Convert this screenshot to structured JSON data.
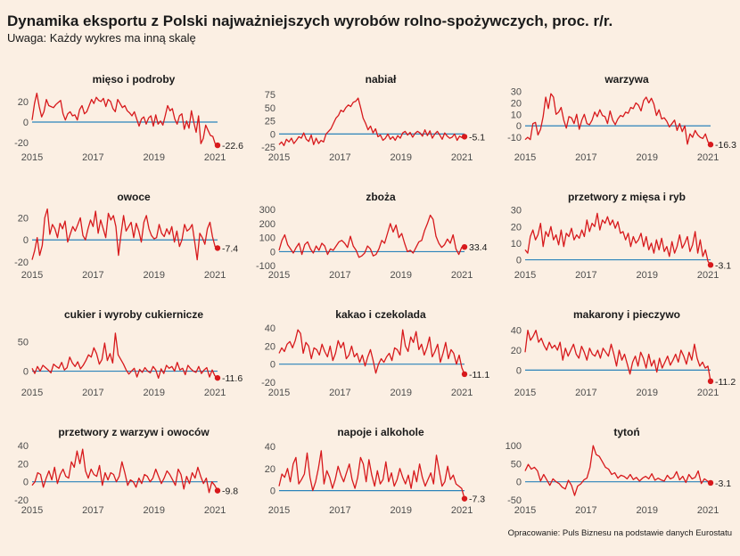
{
  "title": "Dynamika eksportu z Polski najważniejszych wyrobów rolno-spożywczych, proc. r/r.",
  "subtitle": "Uwaga: Każdy wykres ma inną skalę",
  "source": "Opracowanie: Puls Biznesu na podstawie danych Eurostatu",
  "colors": {
    "background": "#fbefe3",
    "series": "#d7191c",
    "zero_line": "#2b83ba",
    "text": "#1a1a1a",
    "axis_text": "#4d4d4d"
  },
  "chart_data": [
    {
      "type": "line",
      "title": "mięso i podroby",
      "x_range": [
        "2015-01",
        "2021-02"
      ],
      "x_ticks": [
        "2015",
        "2017",
        "2019",
        "2021"
      ],
      "y_ticks": [
        20,
        0,
        -20
      ],
      "ylim": [
        -26,
        32
      ],
      "last_value_label": "-22.6",
      "values": [
        2,
        18,
        28,
        15,
        5,
        10,
        22,
        16,
        15,
        14,
        17,
        19,
        21,
        8,
        2,
        8,
        10,
        6,
        7,
        2,
        12,
        16,
        8,
        10,
        16,
        22,
        18,
        24,
        21,
        20,
        23,
        15,
        22,
        20,
        13,
        10,
        22,
        18,
        14,
        16,
        11,
        9,
        6,
        10,
        3,
        -4,
        3,
        5,
        -2,
        4,
        6,
        -4,
        7,
        -2,
        1,
        -3,
        6,
        16,
        11,
        13,
        3,
        -2,
        6,
        8,
        -7,
        1,
        -6,
        11,
        0,
        -10,
        6,
        -21,
        -16,
        -3,
        -8,
        -13,
        -14,
        -21,
        -22.6
      ]
    },
    {
      "type": "line",
      "title": "nabiał",
      "x_range": [
        "2015-01",
        "2021-02"
      ],
      "x_ticks": [
        "2015",
        "2017",
        "2019",
        "2021"
      ],
      "y_ticks": [
        75,
        50,
        25,
        0,
        -25
      ],
      "ylim": [
        -28,
        85
      ],
      "last_value_label": "-5.1",
      "values": [
        -20,
        -15,
        -22,
        -10,
        -15,
        -8,
        -18,
        -12,
        -5,
        -8,
        2,
        -10,
        -14,
        -2,
        -20,
        -8,
        -18,
        -12,
        -15,
        0,
        5,
        10,
        20,
        30,
        35,
        45,
        42,
        50,
        55,
        52,
        60,
        62,
        68,
        50,
        30,
        20,
        8,
        15,
        2,
        10,
        -5,
        -2,
        -12,
        -8,
        0,
        -10,
        -5,
        -12,
        -3,
        -8,
        2,
        5,
        -2,
        3,
        -6,
        1,
        5,
        2,
        -4,
        8,
        -3,
        6,
        -8,
        0,
        5,
        -2,
        -10,
        2,
        -4,
        -8,
        -6,
        0,
        -12,
        -4,
        -7,
        -5.1
      ]
    },
    {
      "type": "line",
      "title": "warzywa",
      "x_range": [
        "2015-01",
        "2021-02"
      ],
      "x_ticks": [
        "2015",
        "2017",
        "2019",
        "2021"
      ],
      "y_ticks": [
        30,
        20,
        10,
        0,
        -10
      ],
      "ylim": [
        -20,
        32
      ],
      "last_value_label": "-16.3",
      "values": [
        -12,
        -10,
        -12,
        2,
        3,
        -8,
        -3,
        8,
        25,
        15,
        28,
        25,
        10,
        12,
        16,
        5,
        -2,
        8,
        7,
        2,
        10,
        -3,
        5,
        10,
        2,
        1,
        5,
        12,
        8,
        14,
        9,
        8,
        2,
        13,
        5,
        1,
        6,
        9,
        8,
        12,
        11,
        16,
        15,
        20,
        18,
        13,
        22,
        25,
        20,
        24,
        19,
        9,
        14,
        6,
        7,
        4,
        -1,
        2,
        5,
        -4,
        2,
        -5,
        0,
        -16,
        -7,
        -10,
        -4,
        -8,
        -10,
        -11,
        -7,
        -14,
        -16.3
      ]
    },
    {
      "type": "line",
      "title": "owoce",
      "x_range": [
        "2015-01",
        "2021-02"
      ],
      "x_ticks": [
        "2015",
        "2017",
        "2019",
        "2021"
      ],
      "y_ticks": [
        20,
        0,
        -20
      ],
      "ylim": [
        -24,
        30
      ],
      "last_value_label": "-7.4",
      "values": [
        -18,
        -10,
        2,
        -14,
        -5,
        20,
        28,
        5,
        14,
        10,
        2,
        15,
        10,
        17,
        -2,
        5,
        12,
        8,
        14,
        20,
        4,
        0,
        10,
        18,
        12,
        26,
        6,
        18,
        10,
        2,
        24,
        18,
        22,
        12,
        -14,
        5,
        22,
        8,
        12,
        16,
        2,
        15,
        8,
        -2,
        16,
        22,
        10,
        4,
        1,
        2,
        14,
        6,
        3,
        10,
        5,
        12,
        -2,
        8,
        -6,
        0,
        14,
        8,
        10,
        14,
        -2,
        -18,
        6,
        2,
        -4,
        10,
        16,
        3,
        -6,
        -7.4
      ]
    },
    {
      "type": "line",
      "title": "zboża",
      "x_range": [
        "2015-01",
        "2021-02"
      ],
      "x_ticks": [
        "2015",
        "2017",
        "2019",
        "2021"
      ],
      "y_ticks": [
        300,
        200,
        100,
        0,
        -100
      ],
      "ylim": [
        -105,
        320
      ],
      "last_value_label": "33.4",
      "values": [
        10,
        80,
        120,
        50,
        20,
        -10,
        30,
        60,
        -20,
        50,
        70,
        20,
        -10,
        40,
        10,
        60,
        40,
        -20,
        20,
        10,
        40,
        70,
        80,
        60,
        30,
        110,
        40,
        10,
        -40,
        -30,
        -10,
        40,
        20,
        -30,
        -20,
        20,
        80,
        60,
        130,
        200,
        140,
        190,
        100,
        130,
        60,
        0,
        10,
        -10,
        30,
        70,
        80,
        150,
        200,
        260,
        230,
        110,
        60,
        30,
        50,
        90,
        60,
        120,
        20,
        -20,
        30,
        33.4
      ]
    },
    {
      "type": "line",
      "title": "przetwory z mięsa i ryb",
      "x_range": [
        "2015-01",
        "2021-02"
      ],
      "x_ticks": [
        "2015",
        "2017",
        "2019",
        "2021"
      ],
      "y_ticks": [
        30,
        20,
        10,
        0
      ],
      "ylim": [
        -4,
        32
      ],
      "last_value_label": "-3.1",
      "values": [
        6,
        4,
        14,
        18,
        12,
        15,
        22,
        8,
        17,
        14,
        20,
        12,
        15,
        9,
        18,
        8,
        16,
        14,
        19,
        12,
        15,
        13,
        18,
        14,
        24,
        17,
        22,
        20,
        28,
        18,
        24,
        22,
        26,
        21,
        24,
        19,
        23,
        16,
        17,
        12,
        16,
        8,
        14,
        10,
        12,
        16,
        8,
        14,
        6,
        10,
        4,
        12,
        6,
        13,
        5,
        8,
        2,
        11,
        4,
        8,
        15,
        7,
        10,
        14,
        5,
        9,
        17,
        4,
        12,
        2,
        6,
        -1,
        -3.1
      ]
    },
    {
      "type": "line",
      "title": "cukier i wyroby cukiernicze",
      "x_range": [
        "2015-01",
        "2021-02"
      ],
      "x_ticks": [
        "2015",
        "2017",
        "2019",
        "2021"
      ],
      "y_ticks": [
        50,
        0
      ],
      "ylim": [
        -22,
        80
      ],
      "last_value_label": "-11.6",
      "values": [
        5,
        -4,
        8,
        0,
        10,
        6,
        2,
        -3,
        12,
        8,
        5,
        15,
        2,
        6,
        24,
        14,
        8,
        16,
        4,
        10,
        18,
        28,
        24,
        40,
        30,
        12,
        20,
        48,
        18,
        30,
        14,
        65,
        28,
        20,
        12,
        2,
        -5,
        0,
        5,
        -10,
        3,
        -2,
        6,
        0,
        -3,
        8,
        2,
        -12,
        4,
        -4,
        10,
        5,
        8,
        0,
        15,
        2,
        5,
        -6,
        10,
        4,
        0,
        -2,
        8,
        -4,
        2,
        6,
        -10,
        2,
        -8,
        -11.6
      ]
    },
    {
      "type": "line",
      "title": "kakao i czekolada",
      "x_range": [
        "2015-01",
        "2021-02"
      ],
      "x_ticks": [
        "2015",
        "2017",
        "2019",
        "2021"
      ],
      "y_ticks": [
        40,
        20,
        0,
        -20
      ],
      "ylim": [
        -22,
        44
      ],
      "last_value_label": "-11.1",
      "values": [
        12,
        18,
        14,
        22,
        25,
        18,
        26,
        38,
        34,
        12,
        24,
        20,
        6,
        18,
        16,
        10,
        22,
        14,
        8,
        20,
        4,
        12,
        26,
        18,
        24,
        6,
        10,
        20,
        8,
        12,
        2,
        10,
        -2,
        8,
        16,
        4,
        -10,
        0,
        6,
        2,
        8,
        12,
        4,
        18,
        16,
        10,
        38,
        20,
        14,
        30,
        24,
        36,
        16,
        22,
        10,
        18,
        30,
        8,
        14,
        22,
        2,
        12,
        24,
        6,
        16,
        12,
        0,
        10,
        -4,
        -11.1
      ]
    },
    {
      "type": "line",
      "title": "makarony i pieczywo",
      "x_range": [
        "2015-01",
        "2021-02"
      ],
      "x_ticks": [
        "2015",
        "2017",
        "2019",
        "2021"
      ],
      "y_ticks": [
        40,
        20,
        0
      ],
      "ylim": [
        -14,
        46
      ],
      "last_value_label": "-11.2",
      "values": [
        18,
        40,
        30,
        34,
        40,
        28,
        32,
        25,
        20,
        28,
        22,
        25,
        20,
        28,
        10,
        22,
        14,
        20,
        26,
        16,
        12,
        24,
        18,
        10,
        22,
        16,
        14,
        20,
        12,
        22,
        18,
        14,
        26,
        16,
        4,
        20,
        10,
        16,
        6,
        -4,
        8,
        14,
        4,
        18,
        12,
        2,
        16,
        4,
        10,
        -2,
        12,
        2,
        8,
        14,
        5,
        10,
        16,
        8,
        20,
        14,
        6,
        18,
        10,
        26,
        12,
        4,
        8,
        2,
        4,
        -11.2
      ]
    },
    {
      "type": "line",
      "title": "przetwory z warzyw i owoców",
      "x_range": [
        "2015-01",
        "2021-02"
      ],
      "x_ticks": [
        "2015",
        "2017",
        "2019",
        "2021"
      ],
      "y_ticks": [
        40,
        20,
        0,
        -20
      ],
      "ylim": [
        -22,
        44
      ],
      "last_value_label": "-9.8",
      "values": [
        -4,
        0,
        10,
        8,
        -6,
        4,
        12,
        2,
        16,
        -2,
        8,
        14,
        6,
        4,
        22,
        16,
        34,
        20,
        36,
        12,
        4,
        14,
        8,
        6,
        18,
        -4,
        10,
        2,
        10,
        8,
        0,
        6,
        22,
        10,
        -4,
        2,
        0,
        -6,
        4,
        -2,
        8,
        6,
        0,
        4,
        14,
        6,
        -2,
        4,
        12,
        8,
        2,
        -4,
        14,
        8,
        -8,
        6,
        -2,
        10,
        4,
        16,
        6,
        -2,
        4,
        -12,
        0,
        -4,
        -9.8
      ]
    },
    {
      "type": "line",
      "title": "napoje i alkohole",
      "x_range": [
        "2015-01",
        "2021-02"
      ],
      "x_ticks": [
        "2015",
        "2017",
        "2019",
        "2021"
      ],
      "y_ticks": [
        40,
        20,
        0
      ],
      "ylim": [
        -10,
        44
      ],
      "last_value_label": "-7.3",
      "values": [
        4,
        15,
        12,
        20,
        8,
        24,
        30,
        6,
        10,
        15,
        34,
        12,
        0,
        8,
        20,
        36,
        6,
        18,
        12,
        2,
        10,
        22,
        14,
        8,
        16,
        24,
        10,
        2,
        12,
        30,
        24,
        8,
        28,
        14,
        4,
        18,
        6,
        10,
        26,
        8,
        16,
        4,
        10,
        20,
        12,
        6,
        14,
        2,
        18,
        8,
        24,
        12,
        4,
        10,
        16,
        6,
        32,
        18,
        4,
        8,
        22,
        10,
        14,
        6,
        4,
        2,
        -7.3
      ]
    },
    {
      "type": "line",
      "title": "tytoń",
      "x_range": [
        "2015-01",
        "2021-02"
      ],
      "x_ticks": [
        "2015",
        "2017",
        "2019",
        "2021"
      ],
      "y_ticks": [
        100,
        50,
        0,
        -50
      ],
      "ylim": [
        -55,
        110
      ],
      "last_value_label": "-3.1",
      "values": [
        30,
        48,
        35,
        40,
        30,
        2,
        20,
        5,
        -10,
        8,
        0,
        -5,
        -15,
        -20,
        4,
        -10,
        -38,
        -12,
        -6,
        5,
        10,
        40,
        100,
        75,
        70,
        55,
        40,
        35,
        20,
        25,
        10,
        18,
        15,
        8,
        20,
        6,
        12,
        2,
        10,
        15,
        8,
        22,
        4,
        10,
        5,
        2,
        18,
        8,
        12,
        28,
        5,
        15,
        -2,
        20,
        8,
        12,
        30,
        -5,
        8,
        2,
        -3.1
      ]
    }
  ]
}
